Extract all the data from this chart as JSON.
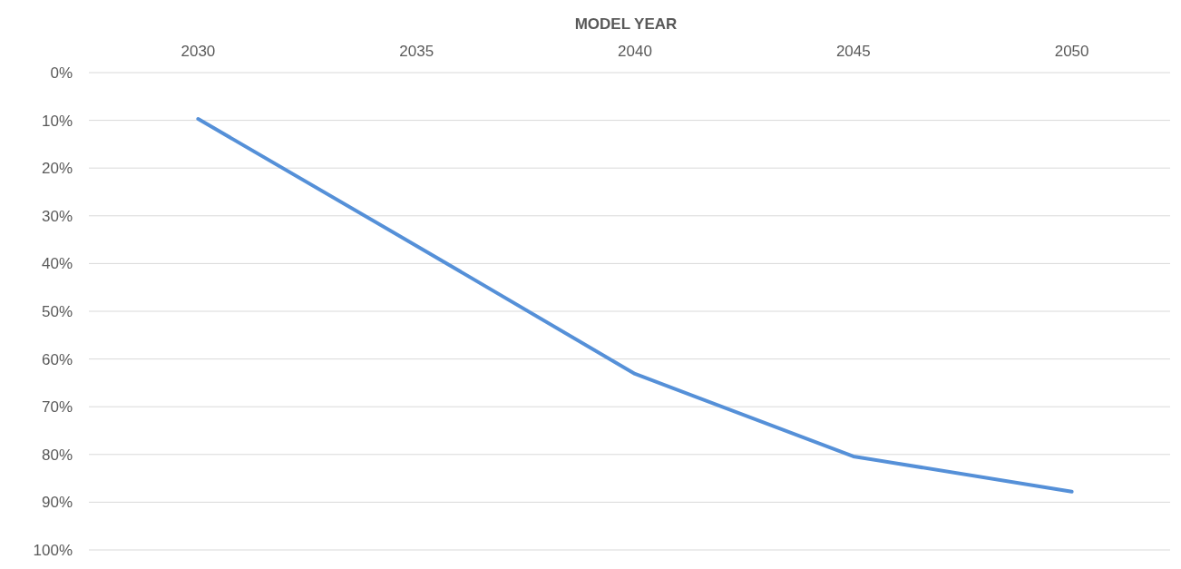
{
  "chart_data": {
    "type": "line",
    "xlabel": "MODEL YEAR",
    "categories": [
      "2030",
      "2035",
      "2040",
      "2045",
      "2050"
    ],
    "series": [
      {
        "color": "#5590d8",
        "values": [
          9.7,
          36.3,
          63.1,
          80.4,
          87.8
        ]
      }
    ],
    "ylim": [
      100,
      0
    ],
    "yticks": [
      {
        "value": 0,
        "label": "0%"
      },
      {
        "value": 10,
        "label": "10%"
      },
      {
        "value": 20,
        "label": "20%"
      },
      {
        "value": 30,
        "label": "30%"
      },
      {
        "value": 40,
        "label": "40%"
      },
      {
        "value": 50,
        "label": "50%"
      },
      {
        "value": 60,
        "label": "60%"
      },
      {
        "value": 70,
        "label": "70%"
      },
      {
        "value": 80,
        "label": "80%"
      },
      {
        "value": 90,
        "label": "90%"
      },
      {
        "value": 100,
        "label": "100%"
      }
    ],
    "grid": "y",
    "marker": "none",
    "line_style": "solid"
  }
}
